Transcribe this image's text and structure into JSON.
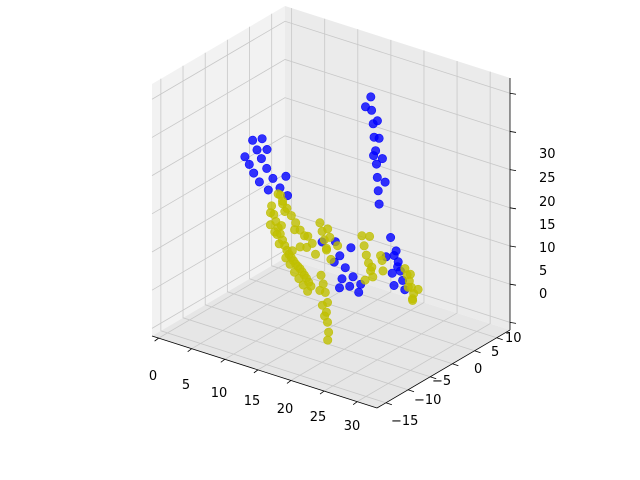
{
  "chart_data": {
    "type": "scatter",
    "title": "",
    "xlabel": "",
    "ylabel": "",
    "zlabel": "",
    "xlim": [
      -1,
      33
    ],
    "ylim": [
      -18,
      12
    ],
    "zlim": [
      -1,
      32
    ],
    "grid": true,
    "x_ticks": [
      "0",
      "5",
      "10",
      "15",
      "20",
      "25",
      "30"
    ],
    "y_ticks": [
      "−15",
      "−10",
      "−5",
      "0",
      "5",
      "10"
    ],
    "z_ticks": [
      "0",
      "5",
      "10",
      "15",
      "20",
      "25",
      "30"
    ],
    "series": [
      {
        "color": "#0000ff",
        "points": [
          [
            20.0,
            -6.0,
            30.0
          ],
          [
            20.4,
            -5.6,
            28.5
          ],
          [
            20.9,
            -5.2,
            27.0
          ],
          [
            21.3,
            -4.8,
            25.5
          ],
          [
            21.8,
            -4.4,
            24.0
          ],
          [
            22.2,
            -4.0,
            22.5
          ],
          [
            22.6,
            -3.6,
            21.0
          ],
          [
            23.0,
            -3.2,
            19.5
          ],
          [
            23.4,
            -2.8,
            18.0
          ],
          [
            20.8,
            -6.3,
            27.0
          ],
          [
            21.6,
            -5.5,
            25.2
          ],
          [
            22.5,
            -4.9,
            23.0
          ],
          [
            23.5,
            -4.0,
            20.5
          ],
          [
            19.6,
            -5.4,
            28.8
          ],
          [
            21.9,
            -3.8,
            23.6
          ],
          [
            5.5,
            -1.0,
            22.0
          ],
          [
            6.5,
            -0.5,
            21.2
          ],
          [
            7.5,
            0.0,
            20.5
          ],
          [
            8.5,
            0.3,
            19.6
          ],
          [
            9.5,
            0.4,
            18.6
          ],
          [
            10.5,
            0.3,
            17.6
          ],
          [
            11.5,
            0.1,
            16.8
          ],
          [
            6.0,
            0.5,
            19.5
          ],
          [
            7.0,
            1.0,
            18.8
          ],
          [
            8.0,
            1.2,
            18.0
          ],
          [
            9.2,
            1.0,
            17.2
          ],
          [
            6.8,
            -1.2,
            22.5
          ],
          [
            7.8,
            -0.8,
            21.5
          ],
          [
            5.2,
            0.3,
            20.2
          ],
          [
            10.8,
            -0.6,
            18.9
          ],
          [
            25.0,
            -3.0,
            14.0
          ],
          [
            26.5,
            -2.0,
            13.0
          ],
          [
            27.5,
            -1.0,
            12.2
          ],
          [
            28.5,
            0.0,
            11.6
          ],
          [
            29.5,
            1.0,
            11.0
          ],
          [
            30.5,
            2.0,
            10.4
          ],
          [
            26.0,
            -0.5,
            12.6
          ],
          [
            27.8,
            0.8,
            11.4
          ],
          [
            29.0,
            2.2,
            10.6
          ],
          [
            25.8,
            -2.6,
            12.0
          ],
          [
            27.0,
            -1.6,
            11.2
          ],
          [
            18.0,
            -2.0,
            10.0
          ],
          [
            19.5,
            -1.0,
            9.2
          ],
          [
            21.0,
            -0.5,
            8.6
          ],
          [
            22.5,
            0.0,
            8.2
          ],
          [
            20.0,
            0.5,
            8.4
          ],
          [
            21.5,
            1.0,
            8.0
          ],
          [
            23.0,
            1.2,
            7.7
          ],
          [
            19.0,
            -3.0,
            11.0
          ],
          [
            17.0,
            -2.5,
            11.4
          ],
          [
            20.5,
            1.8,
            7.8
          ],
          [
            16.0,
            -1.0,
            11.6
          ],
          [
            18.5,
            0.0,
            10.0
          ]
        ]
      },
      {
        "color": "#bfbf00",
        "points": [
          [
            3.0,
            -9.0,
            10.0
          ],
          [
            4.0,
            -8.0,
            9.5
          ],
          [
            5.0,
            -7.0,
            9.2
          ],
          [
            6.0,
            -6.0,
            9.0
          ],
          [
            7.0,
            -5.0,
            8.8
          ],
          [
            8.0,
            -4.0,
            8.6
          ],
          [
            9.0,
            -3.0,
            8.5
          ],
          [
            10.0,
            -2.0,
            8.5
          ],
          [
            11.0,
            -1.0,
            8.6
          ],
          [
            12.0,
            0.0,
            8.8
          ],
          [
            13.0,
            1.0,
            9.0
          ],
          [
            14.0,
            2.0,
            9.2
          ],
          [
            15.0,
            3.0,
            9.5
          ],
          [
            16.0,
            4.0,
            9.8
          ],
          [
            17.0,
            5.0,
            10.0
          ],
          [
            18.0,
            6.0,
            10.2
          ],
          [
            19.0,
            7.0,
            10.4
          ],
          [
            20.0,
            8.0,
            10.5
          ],
          [
            21.0,
            9.0,
            10.6
          ],
          [
            3.5,
            -8.0,
            8.0
          ],
          [
            4.5,
            -7.5,
            7.5
          ],
          [
            5.5,
            -6.5,
            7.8
          ],
          [
            6.5,
            -5.5,
            7.2
          ],
          [
            4.0,
            -9.5,
            11.5
          ],
          [
            5.0,
            -8.5,
            11.0
          ],
          [
            6.0,
            -7.5,
            10.6
          ],
          [
            2.5,
            -9.5,
            8.8
          ],
          [
            7.5,
            -4.5,
            10.2
          ],
          [
            9.5,
            -2.5,
            7.2
          ],
          [
            11.5,
            -0.5,
            7.6
          ],
          [
            13.5,
            1.5,
            7.8
          ],
          [
            15.5,
            3.5,
            8.2
          ],
          [
            17.5,
            5.5,
            8.6
          ],
          [
            19.5,
            7.5,
            9.0
          ],
          [
            8.0,
            -3.0,
            15.0
          ],
          [
            9.0,
            -2.5,
            14.5
          ],
          [
            10.0,
            -2.0,
            14.0
          ],
          [
            11.0,
            -1.5,
            13.5
          ],
          [
            12.0,
            -1.0,
            13.0
          ],
          [
            13.0,
            -0.5,
            12.5
          ],
          [
            14.0,
            0.0,
            12.2
          ],
          [
            15.0,
            -2.0,
            13.5
          ],
          [
            16.0,
            -1.0,
            13.0
          ],
          [
            17.0,
            0.0,
            12.5
          ],
          [
            18.0,
            1.0,
            12.0
          ],
          [
            15.5,
            -3.0,
            12.5
          ],
          [
            16.5,
            -2.0,
            12.0
          ],
          [
            19.0,
            1.5,
            11.0
          ],
          [
            14.5,
            -1.0,
            11.0
          ],
          [
            20.0,
            -4.0,
            12.5
          ],
          [
            21.0,
            -3.0,
            11.8
          ],
          [
            22.0,
            -2.0,
            11.2
          ],
          [
            23.0,
            -1.0,
            10.8
          ],
          [
            24.0,
            0.0,
            10.4
          ],
          [
            25.0,
            1.0,
            10.2
          ],
          [
            22.5,
            -2.5,
            9.6
          ],
          [
            21.5,
            -3.5,
            13.0
          ],
          [
            24.5,
            -1.5,
            12.0
          ],
          [
            23.5,
            0.5,
            9.2
          ],
          [
            26.0,
            0.2,
            11.0
          ],
          [
            25.2,
            -0.8,
            11.8
          ],
          [
            17.5,
            1.5,
            8.5
          ],
          [
            18.5,
            2.5,
            8.0
          ],
          [
            19.5,
            3.5,
            7.5
          ],
          [
            20.5,
            4.5,
            6.8
          ],
          [
            21.0,
            5.5,
            6.0
          ],
          [
            21.5,
            6.0,
            5.0
          ],
          [
            22.0,
            6.5,
            4.0
          ],
          [
            19.0,
            4.0,
            7.8
          ],
          [
            20.2,
            5.2,
            6.6
          ],
          [
            21.2,
            6.2,
            5.8
          ],
          [
            22.2,
            7.0,
            3.2
          ],
          [
            26.5,
            -4.0,
            10.0
          ],
          [
            27.5,
            -3.0,
            9.8
          ],
          [
            28.5,
            -2.0,
            9.6
          ],
          [
            29.5,
            -1.0,
            9.4
          ],
          [
            30.5,
            0.0,
            9.2
          ],
          [
            31.0,
            1.0,
            9.0
          ],
          [
            28.0,
            -2.5,
            8.5
          ],
          [
            30.0,
            -0.5,
            8.0
          ],
          [
            29.0,
            -1.5,
            10.8
          ],
          [
            31.5,
            0.5,
            10.2
          ],
          [
            16.0,
            0.5,
            10.5
          ],
          [
            17.0,
            -0.5,
            11.0
          ],
          [
            18.0,
            -1.5,
            11.5
          ],
          [
            14.0,
            -0.5,
            10.5
          ],
          [
            12.5,
            0.5,
            10.0
          ],
          [
            13.5,
            -1.5,
            11.5
          ],
          [
            10.5,
            -3.0,
            11.0
          ],
          [
            12.0,
            -2.0,
            9.5
          ]
        ]
      }
    ]
  }
}
